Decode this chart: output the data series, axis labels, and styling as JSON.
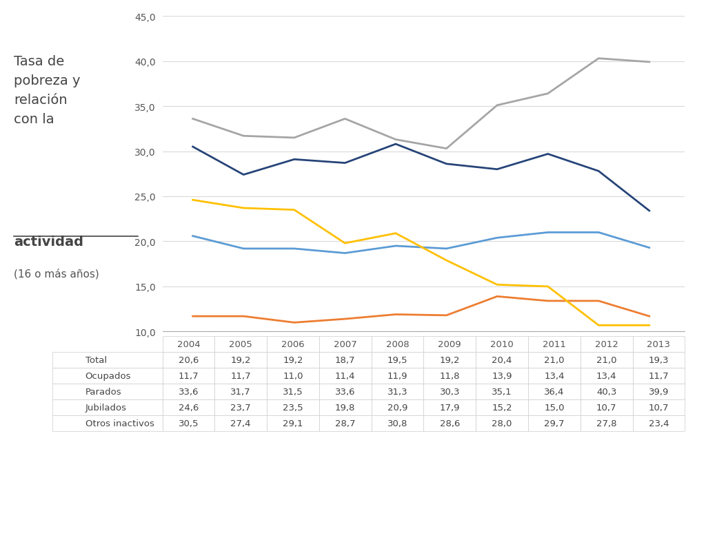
{
  "years": [
    2004,
    2005,
    2006,
    2007,
    2008,
    2009,
    2010,
    2011,
    2012,
    2013
  ],
  "series_order": [
    "Total",
    "Ocupados",
    "Parados",
    "Jubilados",
    "Otros inactivos"
  ],
  "series": {
    "Total": [
      20.6,
      19.2,
      19.2,
      18.7,
      19.5,
      19.2,
      20.4,
      21.0,
      21.0,
      19.3
    ],
    "Ocupados": [
      11.7,
      11.7,
      11.0,
      11.4,
      11.9,
      11.8,
      13.9,
      13.4,
      13.4,
      11.7
    ],
    "Parados": [
      33.6,
      31.7,
      31.5,
      33.6,
      31.3,
      30.3,
      35.1,
      36.4,
      40.3,
      39.9
    ],
    "Jubilados": [
      24.6,
      23.7,
      23.5,
      19.8,
      20.9,
      17.9,
      15.2,
      15.0,
      10.7,
      10.7
    ],
    "Otros inactivos": [
      30.5,
      27.4,
      29.1,
      28.7,
      30.8,
      28.6,
      28.0,
      29.7,
      27.8,
      23.4
    ]
  },
  "colors": {
    "Total": "#5B9BD5",
    "Ocupados": "#ED7D31",
    "Parados": "#A5A5A5",
    "Jubilados": "#FFC000",
    "Otros inactivos": "#264478"
  },
  "title_main": "Tasa de\npobreza y\nrelación\ncon la",
  "title_bold_underline": "actividad",
  "title_sub": "(16 o más años)",
  "ylim": [
    10.0,
    45.0
  ],
  "yticks": [
    10.0,
    15.0,
    20.0,
    25.0,
    30.0,
    35.0,
    40.0,
    45.0
  ],
  "background_color": "#FFFFFF",
  "plot_bg_color": "#FFFFFF",
  "grid_color": "#D9D9D9",
  "table_data": [
    [
      20.6,
      19.2,
      19.2,
      18.7,
      19.5,
      19.2,
      20.4,
      21.0,
      21.0,
      19.3
    ],
    [
      11.7,
      11.7,
      11.0,
      11.4,
      11.9,
      11.8,
      13.9,
      13.4,
      13.4,
      11.7
    ],
    [
      33.6,
      31.7,
      31.5,
      33.6,
      31.3,
      30.3,
      35.1,
      36.4,
      40.3,
      39.9
    ],
    [
      24.6,
      23.7,
      23.5,
      19.8,
      20.9,
      17.9,
      15.2,
      15.0,
      10.7,
      10.7
    ],
    [
      30.5,
      27.4,
      29.1,
      28.7,
      30.8,
      28.6,
      28.0,
      29.7,
      27.8,
      23.4
    ]
  ]
}
